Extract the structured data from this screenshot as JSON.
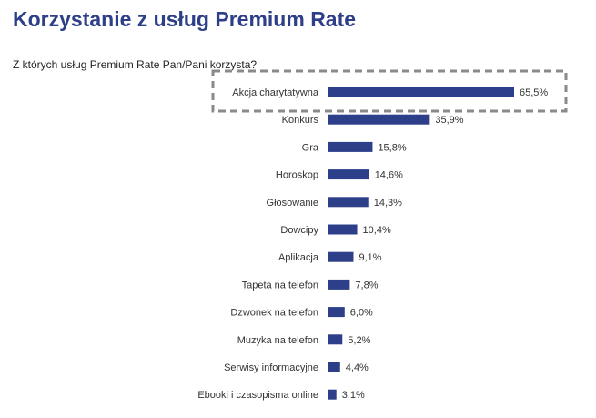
{
  "title": "Korzystanie z usług Premium Rate",
  "subtitle": "Z których usług Premium Rate Pan/Pani korzysta?",
  "chart_data": {
    "type": "bar",
    "orientation": "horizontal",
    "categories": [
      "Akcja charytatywna",
      "Konkurs",
      "Gra",
      "Horoskop",
      "Głosowanie",
      "Dowcipy",
      "Aplikacja",
      "Tapeta na telefon",
      "Dzwonek na telefon",
      "Muzyka na telefon",
      "Serwisy informacyjne",
      "Ebooki i czasopisma online"
    ],
    "values": [
      65.5,
      35.9,
      15.8,
      14.6,
      14.3,
      10.4,
      9.1,
      7.8,
      6.0,
      5.2,
      4.4,
      3.1
    ],
    "value_labels": [
      "65,5%",
      "35,9%",
      "15,8%",
      "14,6%",
      "14,3%",
      "10,4%",
      "9,1%",
      "7,8%",
      "6,0%",
      "5,2%",
      "4,4%",
      "3,1%"
    ],
    "highlighted_category": "Akcja charytatywna",
    "bar_color": "#2e3f8a",
    "highlight_border_color": "#8a8a8a",
    "xlim": [
      0,
      100
    ],
    "grid": false,
    "legend": "none"
  }
}
